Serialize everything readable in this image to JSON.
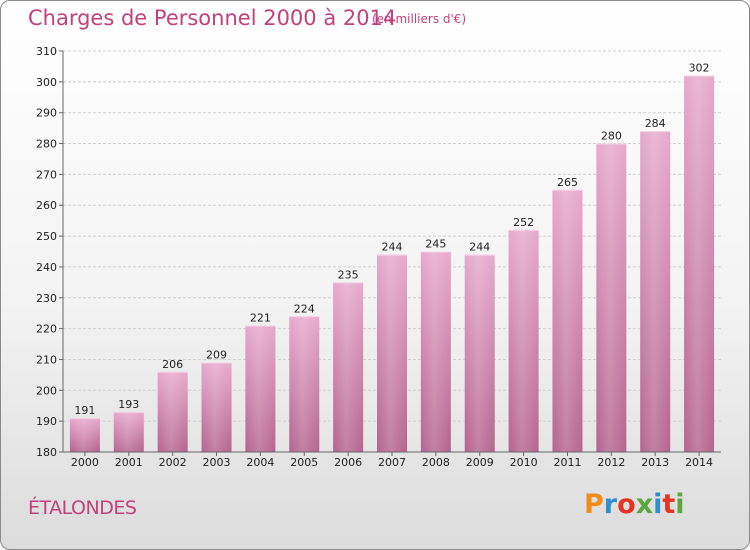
{
  "header": {
    "title": "Charges de Personnel 2000 à 2014",
    "subtitle": "(en milliers d'€)"
  },
  "footer": {
    "commune": "ÉTALONDES",
    "logo_text": "Proxiti"
  },
  "colors": {
    "title": "#c2407e",
    "bar_light": "#e7a9cc",
    "bar_dark": "#b5648f",
    "logo": [
      "#f28c1c",
      "#2f8fd0",
      "#e63323",
      "#5aa83b",
      "#2f8fd0",
      "#e63323",
      "#5aa83b"
    ]
  },
  "chart_data": {
    "type": "bar",
    "title": "Charges de Personnel 2000 à 2014",
    "subtitle": "(en milliers d'€)",
    "xlabel": "",
    "ylabel": "",
    "categories": [
      "2000",
      "2001",
      "2002",
      "2003",
      "2004",
      "2005",
      "2006",
      "2007",
      "2008",
      "2009",
      "2010",
      "2011",
      "2012",
      "2013",
      "2014"
    ],
    "values": [
      191,
      193,
      206,
      209,
      221,
      224,
      235,
      244,
      245,
      244,
      252,
      265,
      280,
      284,
      302
    ],
    "ylim": [
      180,
      310
    ],
    "yticks": [
      180,
      190,
      200,
      210,
      220,
      230,
      240,
      250,
      260,
      270,
      280,
      290,
      300,
      310
    ],
    "grid": true,
    "data_labels": true
  }
}
